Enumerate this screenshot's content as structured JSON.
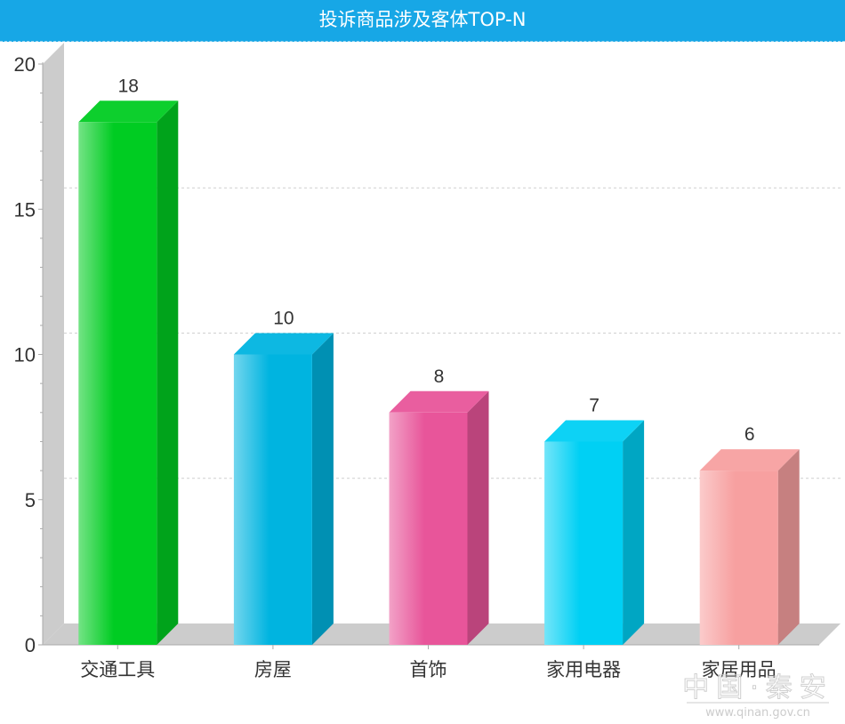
{
  "chart_data": {
    "type": "bar",
    "title": "投诉商品涉及客体TOP-N",
    "categories": [
      "交通工具",
      "房屋",
      "首饰",
      "家用电器",
      "家居用品"
    ],
    "values": [
      18,
      10,
      8,
      7,
      6
    ],
    "ylim": [
      0,
      20
    ],
    "yticks": [
      0,
      5,
      10,
      15,
      20
    ],
    "grid": true,
    "style": "3d",
    "colors": [
      "#00cc22",
      "#00b4e0",
      "#e8559a",
      "#00d0f4",
      "#f7a0a0"
    ],
    "title_bar_color": "#17a7e6"
  },
  "watermark": {
    "text": "中国·秦安",
    "url": "www.qinan.gov.cn"
  }
}
